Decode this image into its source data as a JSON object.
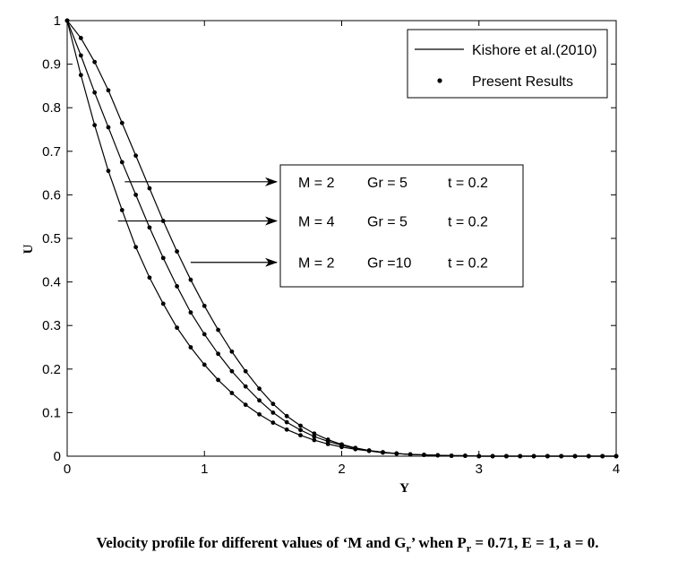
{
  "chart_data": {
    "type": "line",
    "xlabel": "Y",
    "ylabel": "U",
    "xlim": [
      0,
      4
    ],
    "ylim": [
      0,
      1
    ],
    "xticks": [
      "0",
      "1",
      "2",
      "3",
      "4"
    ],
    "yticks": [
      "0",
      "0.1",
      "0.2",
      "0.3",
      "0.4",
      "0.5",
      "0.6",
      "0.7",
      "0.8",
      "0.9",
      "1"
    ],
    "grid": false,
    "legend_position": "top-right",
    "legend": [
      {
        "label": "Kishore et al.(2010)",
        "marker": "line"
      },
      {
        "label": "Present Results",
        "marker": "dot"
      }
    ],
    "series": [
      {
        "annotation": {
          "m": "M = 2",
          "gr": "Gr =  5",
          "t": "t = 0.2"
        },
        "arrow_start_x": 0.42,
        "arrow_y": 0.63,
        "points": [
          [
            0,
            1.0
          ],
          [
            0.1,
            0.96
          ],
          [
            0.2,
            0.905
          ],
          [
            0.3,
            0.84
          ],
          [
            0.4,
            0.765
          ],
          [
            0.5,
            0.69
          ],
          [
            0.6,
            0.615
          ],
          [
            0.7,
            0.54
          ],
          [
            0.8,
            0.47
          ],
          [
            0.9,
            0.405
          ],
          [
            1.0,
            0.345
          ],
          [
            1.1,
            0.29
          ],
          [
            1.2,
            0.24
          ],
          [
            1.3,
            0.195
          ],
          [
            1.4,
            0.155
          ],
          [
            1.5,
            0.12
          ],
          [
            1.6,
            0.092
          ],
          [
            1.7,
            0.07
          ],
          [
            1.8,
            0.052
          ],
          [
            1.9,
            0.038
          ],
          [
            2.0,
            0.027
          ],
          [
            2.1,
            0.019
          ],
          [
            2.2,
            0.013
          ],
          [
            2.3,
            0.009
          ],
          [
            2.4,
            0.006
          ],
          [
            2.5,
            0.004
          ],
          [
            2.6,
            0.003
          ],
          [
            2.7,
            0.002
          ],
          [
            2.8,
            0.001
          ],
          [
            2.9,
            0.001
          ],
          [
            3.0,
            0.0
          ],
          [
            3.1,
            0.0
          ],
          [
            3.2,
            0.0
          ],
          [
            3.3,
            0.0
          ],
          [
            3.4,
            0.0
          ],
          [
            3.5,
            0.0
          ],
          [
            3.6,
            0.0
          ],
          [
            3.7,
            0.0
          ],
          [
            3.8,
            0.0
          ],
          [
            3.9,
            0.0
          ],
          [
            4.0,
            0.0
          ]
        ]
      },
      {
        "annotation": {
          "m": "M = 4",
          "gr": "Gr =  5",
          "t": "t = 0.2"
        },
        "arrow_start_x": 0.37,
        "arrow_y": 0.54,
        "points": [
          [
            0,
            1.0
          ],
          [
            0.1,
            0.92
          ],
          [
            0.2,
            0.835
          ],
          [
            0.3,
            0.755
          ],
          [
            0.4,
            0.675
          ],
          [
            0.5,
            0.6
          ],
          [
            0.6,
            0.525
          ],
          [
            0.7,
            0.455
          ],
          [
            0.8,
            0.39
          ],
          [
            0.9,
            0.33
          ],
          [
            1.0,
            0.28
          ],
          [
            1.1,
            0.235
          ],
          [
            1.2,
            0.195
          ],
          [
            1.3,
            0.16
          ],
          [
            1.4,
            0.128
          ],
          [
            1.5,
            0.1
          ],
          [
            1.6,
            0.078
          ],
          [
            1.7,
            0.06
          ],
          [
            1.8,
            0.045
          ],
          [
            1.9,
            0.034
          ],
          [
            2.0,
            0.025
          ],
          [
            2.1,
            0.018
          ],
          [
            2.2,
            0.013
          ],
          [
            2.3,
            0.009
          ],
          [
            2.4,
            0.006
          ],
          [
            2.5,
            0.004
          ],
          [
            2.6,
            0.003
          ],
          [
            2.7,
            0.002
          ],
          [
            2.8,
            0.001
          ],
          [
            2.9,
            0.001
          ],
          [
            3.0,
            0.0
          ],
          [
            3.1,
            0.0
          ],
          [
            3.2,
            0.0
          ],
          [
            3.3,
            0.0
          ],
          [
            3.4,
            0.0
          ],
          [
            3.5,
            0.0
          ],
          [
            3.6,
            0.0
          ],
          [
            3.7,
            0.0
          ],
          [
            3.8,
            0.0
          ],
          [
            3.9,
            0.0
          ],
          [
            4.0,
            0.0
          ]
        ]
      },
      {
        "annotation": {
          "m": "M = 2",
          "gr": "Gr =10",
          "t": "t = 0.2"
        },
        "arrow_start_x": 0.9,
        "arrow_y": 0.445,
        "points": [
          [
            0,
            1.0
          ],
          [
            0.1,
            0.875
          ],
          [
            0.2,
            0.76
          ],
          [
            0.3,
            0.655
          ],
          [
            0.4,
            0.565
          ],
          [
            0.5,
            0.48
          ],
          [
            0.6,
            0.41
          ],
          [
            0.7,
            0.35
          ],
          [
            0.8,
            0.295
          ],
          [
            0.9,
            0.25
          ],
          [
            1.0,
            0.21
          ],
          [
            1.1,
            0.175
          ],
          [
            1.2,
            0.145
          ],
          [
            1.3,
            0.118
          ],
          [
            1.4,
            0.096
          ],
          [
            1.5,
            0.077
          ],
          [
            1.6,
            0.061
          ],
          [
            1.7,
            0.048
          ],
          [
            1.8,
            0.037
          ],
          [
            1.9,
            0.028
          ],
          [
            2.0,
            0.021
          ],
          [
            2.1,
            0.016
          ],
          [
            2.2,
            0.012
          ],
          [
            2.3,
            0.008
          ],
          [
            2.4,
            0.006
          ],
          [
            2.5,
            0.004
          ],
          [
            2.6,
            0.003
          ],
          [
            2.7,
            0.002
          ],
          [
            2.8,
            0.001
          ],
          [
            2.9,
            0.001
          ],
          [
            3.0,
            0.0
          ],
          [
            3.1,
            0.0
          ],
          [
            3.2,
            0.0
          ],
          [
            3.3,
            0.0
          ],
          [
            3.4,
            0.0
          ],
          [
            3.5,
            0.0
          ],
          [
            3.6,
            0.0
          ],
          [
            3.7,
            0.0
          ],
          [
            3.8,
            0.0
          ],
          [
            3.9,
            0.0
          ],
          [
            4.0,
            0.0
          ]
        ]
      }
    ]
  },
  "caption": {
    "prefix": "Velocity profile for different values of ‘M and G",
    "sub1": "r",
    "middle": "’ when P",
    "sub2": "r",
    "suffix": " = 0.71, E = 1, a = 0."
  }
}
